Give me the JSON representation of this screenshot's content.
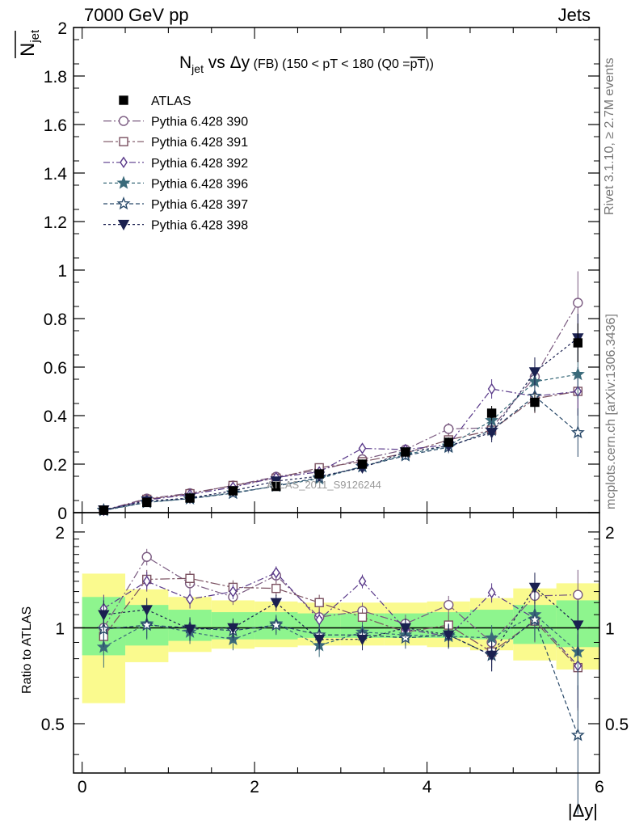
{
  "header": {
    "left": "7000 GeV pp",
    "right": "Jets"
  },
  "side_labels": {
    "rivet": "Rivet 3.1.10, ≥ 2.7M events",
    "mcplots": "mcplots.cern.ch [arXiv:1306.3436]"
  },
  "watermark": "ATLAS_2011_S9126244",
  "chart_data": [
    {
      "type": "scatter",
      "panel": "main",
      "title_main": "N",
      "title_sub": "jet",
      "title_rest": " vs Δy",
      "title_fb": " (FB)",
      "title_range": " (150 < pT < 180 (Q0 =",
      "title_pt": "pT",
      "title_close": "))",
      "ylabel_main": "N",
      "ylabel_sub": "jet",
      "xlim": [
        -0.1,
        6.0
      ],
      "ylim": [
        0,
        2
      ],
      "yticks": [
        0,
        0.2,
        0.4,
        0.6,
        0.8,
        1,
        1.2,
        1.4,
        1.6,
        1.8,
        2
      ],
      "ytick_labels": [
        "0",
        "0.2",
        "0.4",
        "0.6",
        "0.8",
        "1",
        "1.2",
        "1.4",
        "1.6",
        "1.8",
        "2"
      ],
      "legend_position": "top-left",
      "x": [
        0.25,
        0.75,
        1.25,
        1.75,
        2.25,
        2.75,
        3.25,
        3.75,
        4.25,
        4.75,
        5.25,
        5.75
      ],
      "series": [
        {
          "name": "ATLAS",
          "color": "#000000",
          "marker": "square-filled",
          "dash": "",
          "values": [
            0.01,
            0.042,
            0.06,
            0.09,
            0.108,
            0.16,
            0.2,
            0.25,
            0.29,
            0.41,
            0.455,
            0.7
          ],
          "errors": [
            0.002,
            0.004,
            0.005,
            0.007,
            0.008,
            0.01,
            0.012,
            0.015,
            0.02,
            0.03,
            0.04,
            0.08
          ]
        },
        {
          "name": "Pythia 6.428 390",
          "color": "#7a5a80",
          "marker": "circle-open",
          "dash": "10,3,2,3",
          "values": [
            0.01,
            0.058,
            0.08,
            0.112,
            0.148,
            0.175,
            0.22,
            0.26,
            0.345,
            0.35,
            0.56,
            0.865
          ],
          "errors": [
            0.003,
            0.005,
            0.006,
            0.008,
            0.01,
            0.012,
            0.015,
            0.018,
            0.025,
            0.04,
            0.06,
            0.13
          ]
        },
        {
          "name": "Pythia 6.428 391",
          "color": "#7a5060",
          "marker": "square-open",
          "dash": "12,3,3,3",
          "values": [
            0.009,
            0.055,
            0.078,
            0.112,
            0.142,
            0.185,
            0.21,
            0.245,
            0.3,
            0.34,
            0.47,
            0.5
          ],
          "errors": [
            0.003,
            0.005,
            0.006,
            0.008,
            0.01,
            0.012,
            0.015,
            0.018,
            0.025,
            0.04,
            0.06,
            0.1
          ]
        },
        {
          "name": "Pythia 6.428 392",
          "color": "#5a3a8a",
          "marker": "diamond-open",
          "dash": "8,3,2,3",
          "values": [
            0.01,
            0.052,
            0.075,
            0.105,
            0.145,
            0.168,
            0.265,
            0.26,
            0.28,
            0.51,
            0.48,
            0.5
          ],
          "errors": [
            0.003,
            0.005,
            0.006,
            0.008,
            0.01,
            0.012,
            0.015,
            0.018,
            0.025,
            0.04,
            0.06,
            0.1
          ]
        },
        {
          "name": "Pythia 6.428 396",
          "color": "#3a6a7a",
          "marker": "star-filled",
          "dash": "4,3",
          "values": [
            0.009,
            0.042,
            0.058,
            0.082,
            0.11,
            0.14,
            0.19,
            0.24,
            0.275,
            0.38,
            0.54,
            0.57
          ],
          "errors": [
            0.003,
            0.005,
            0.006,
            0.008,
            0.01,
            0.012,
            0.015,
            0.018,
            0.025,
            0.04,
            0.06,
            0.1
          ]
        },
        {
          "name": "Pythia 6.428 397",
          "color": "#2a4a6a",
          "marker": "star-open",
          "dash": "5,3",
          "values": [
            0.01,
            0.043,
            0.058,
            0.08,
            0.11,
            0.145,
            0.19,
            0.235,
            0.27,
            0.34,
            0.48,
            0.33
          ],
          "errors": [
            0.003,
            0.005,
            0.006,
            0.008,
            0.01,
            0.012,
            0.015,
            0.018,
            0.025,
            0.04,
            0.06,
            0.1
          ]
        },
        {
          "name": "Pythia 6.428 398",
          "color": "#1a2050",
          "marker": "triangle-down-filled",
          "dash": "3,3",
          "values": [
            0.011,
            0.048,
            0.06,
            0.09,
            0.13,
            0.15,
            0.185,
            0.25,
            0.275,
            0.33,
            0.58,
            0.72
          ],
          "errors": [
            0.003,
            0.005,
            0.006,
            0.008,
            0.01,
            0.012,
            0.015,
            0.018,
            0.025,
            0.04,
            0.06,
            0.1
          ]
        }
      ]
    },
    {
      "type": "scatter",
      "panel": "ratio",
      "ylabel": "Ratio to ATLAS",
      "xlabel": "|Δy|",
      "xlim": [
        -0.1,
        6.0
      ],
      "ylim": [
        0.35,
        2.3
      ],
      "log_y": true,
      "xticks": [
        0,
        2,
        4,
        6
      ],
      "xtick_labels": [
        "0",
        "2",
        "4",
        "6"
      ],
      "yticks": [
        0.5,
        1,
        2
      ],
      "ytick_labels": [
        "0.5",
        "1",
        "2"
      ],
      "reference_line": 1,
      "bands": {
        "edges": [
          0,
          0.5,
          1,
          1.5,
          2,
          2.5,
          3,
          3.5,
          4,
          4.5,
          5,
          5.5,
          6
        ],
        "green_color": "#8ef58e",
        "yellow_color": "#fafa8e",
        "green": [
          [
            0.82,
            1.25
          ],
          [
            0.88,
            1.18
          ],
          [
            0.91,
            1.14
          ],
          [
            0.92,
            1.12
          ],
          [
            0.92,
            1.12
          ],
          [
            0.93,
            1.11
          ],
          [
            0.93,
            1.11
          ],
          [
            0.93,
            1.11
          ],
          [
            0.93,
            1.12
          ],
          [
            0.92,
            1.14
          ],
          [
            0.89,
            1.18
          ],
          [
            0.87,
            1.22
          ]
        ],
        "yellow": [
          [
            0.58,
            1.48
          ],
          [
            0.78,
            1.32
          ],
          [
            0.84,
            1.25
          ],
          [
            0.86,
            1.22
          ],
          [
            0.87,
            1.21
          ],
          [
            0.88,
            1.2
          ],
          [
            0.88,
            1.2
          ],
          [
            0.88,
            1.2
          ],
          [
            0.87,
            1.21
          ],
          [
            0.85,
            1.24
          ],
          [
            0.79,
            1.33
          ],
          [
            0.74,
            1.38
          ]
        ]
      },
      "x": [
        0.25,
        0.75,
        1.25,
        1.75,
        2.25,
        2.75,
        3.25,
        3.75,
        4.25,
        4.75,
        5.25,
        5.75
      ],
      "series": [
        {
          "name": "Pythia 6.428 390",
          "values": [
            1.0,
            1.67,
            1.38,
            1.25,
            1.46,
            1.08,
            1.13,
            1.03,
            1.18,
            0.9,
            1.26,
            1.27
          ],
          "errors": [
            0.12,
            0.1,
            0.08,
            0.07,
            0.07,
            0.07,
            0.07,
            0.07,
            0.08,
            0.09,
            0.15,
            0.25
          ]
        },
        {
          "name": "Pythia 6.428 391",
          "values": [
            0.94,
            1.42,
            1.43,
            1.34,
            1.33,
            1.2,
            1.08,
            0.97,
            1.02,
            0.84,
            1.05,
            0.75
          ],
          "errors": [
            0.12,
            0.1,
            0.08,
            0.07,
            0.07,
            0.07,
            0.07,
            0.07,
            0.08,
            0.09,
            0.15,
            0.2
          ]
        },
        {
          "name": "Pythia 6.428 392",
          "values": [
            1.15,
            1.4,
            1.23,
            1.3,
            1.49,
            1.06,
            1.4,
            0.99,
            0.94,
            1.29,
            1.07,
            0.76
          ],
          "errors": [
            0.12,
            0.1,
            0.08,
            0.07,
            0.07,
            0.07,
            0.07,
            0.07,
            0.08,
            0.09,
            0.15,
            0.2
          ]
        },
        {
          "name": "Pythia 6.428 396",
          "values": [
            0.87,
            1.03,
            0.97,
            0.92,
            1.03,
            0.88,
            0.97,
            0.95,
            0.94,
            0.93,
            1.1,
            0.84
          ],
          "errors": [
            0.12,
            0.1,
            0.08,
            0.07,
            0.07,
            0.07,
            0.07,
            0.07,
            0.08,
            0.09,
            0.15,
            0.2
          ]
        },
        {
          "name": "Pythia 6.428 397",
          "values": [
            0.99,
            1.02,
            1.0,
            0.98,
            1.02,
            0.95,
            0.95,
            0.93,
            0.95,
            0.82,
            1.06,
            0.46
          ],
          "errors": [
            0.12,
            0.1,
            0.08,
            0.07,
            0.07,
            0.07,
            0.07,
            0.07,
            0.08,
            0.09,
            0.15,
            0.2
          ]
        },
        {
          "name": "Pythia 6.428 398",
          "values": [
            1.1,
            1.14,
            0.99,
            1.0,
            1.2,
            0.92,
            0.92,
            1.0,
            0.95,
            0.82,
            1.34,
            1.02
          ],
          "errors": [
            0.12,
            0.1,
            0.08,
            0.07,
            0.07,
            0.07,
            0.07,
            0.07,
            0.08,
            0.09,
            0.15,
            0.2
          ]
        }
      ]
    }
  ]
}
